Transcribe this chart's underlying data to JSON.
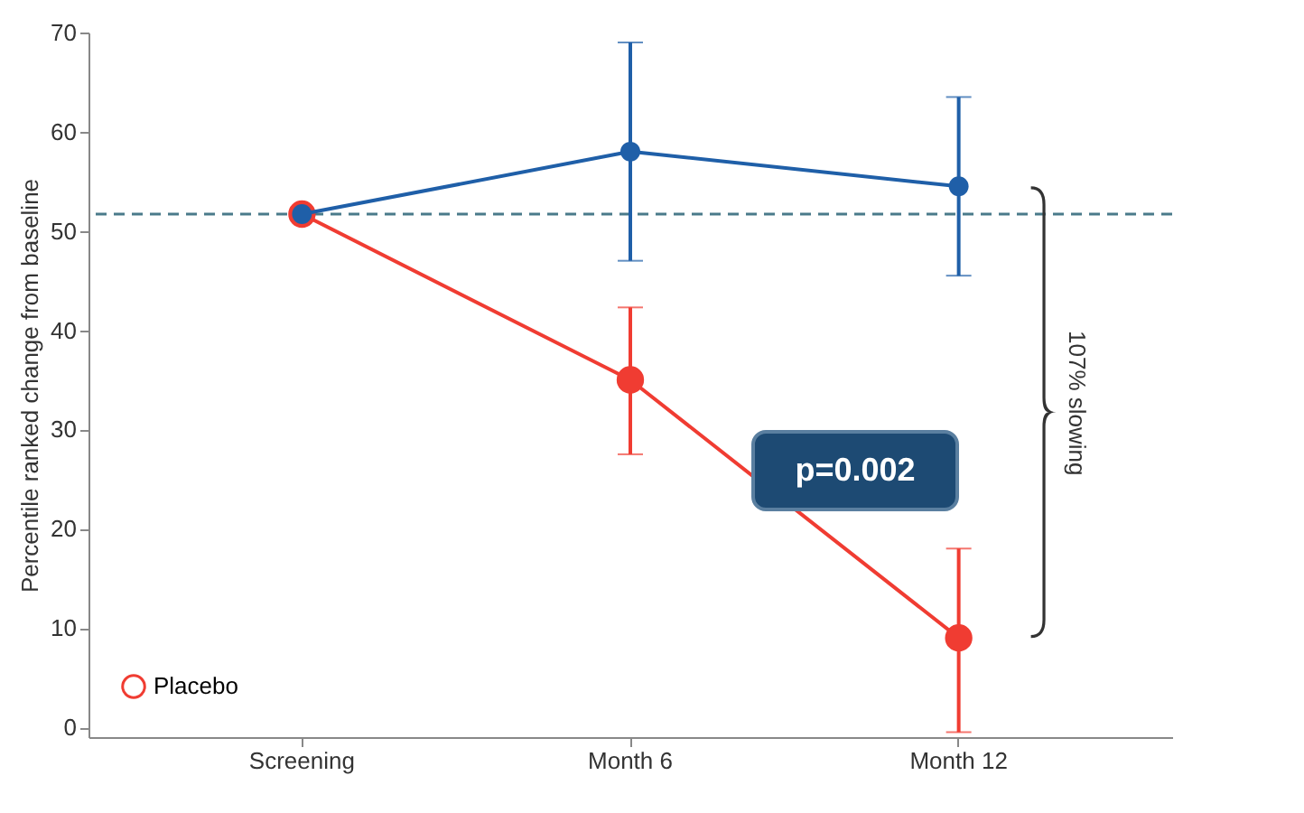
{
  "chart_data": {
    "type": "line",
    "ylabel": "Percentile ranked change from baseline",
    "categories": [
      "Screening",
      "Month 6",
      "Month 12"
    ],
    "series": [
      {
        "name": "Placebo",
        "color": "#f03c32",
        "values": [
          51.7,
          35,
          9
        ],
        "errors": [
          null,
          [
            27.5,
            42.3
          ],
          [
            -0.5,
            18
          ]
        ]
      },
      {
        "color": "#1f5fa8",
        "values": [
          51.7,
          58,
          54.5
        ],
        "errors": [
          null,
          [
            47,
            69
          ],
          [
            45.5,
            63.5
          ]
        ]
      }
    ],
    "ylim": [
      -1,
      70
    ],
    "yticks": [
      0,
      10,
      20,
      30,
      40,
      50,
      60,
      70
    ],
    "grid": false,
    "marker": "circle",
    "legend": "bottom left",
    "ref_lines": [
      {
        "axis": "y",
        "value": 51.7,
        "color": "#4a7a8a",
        "line_style": "dashed"
      }
    ],
    "annotations": [
      "p=0.002",
      "107% slowing"
    ]
  }
}
